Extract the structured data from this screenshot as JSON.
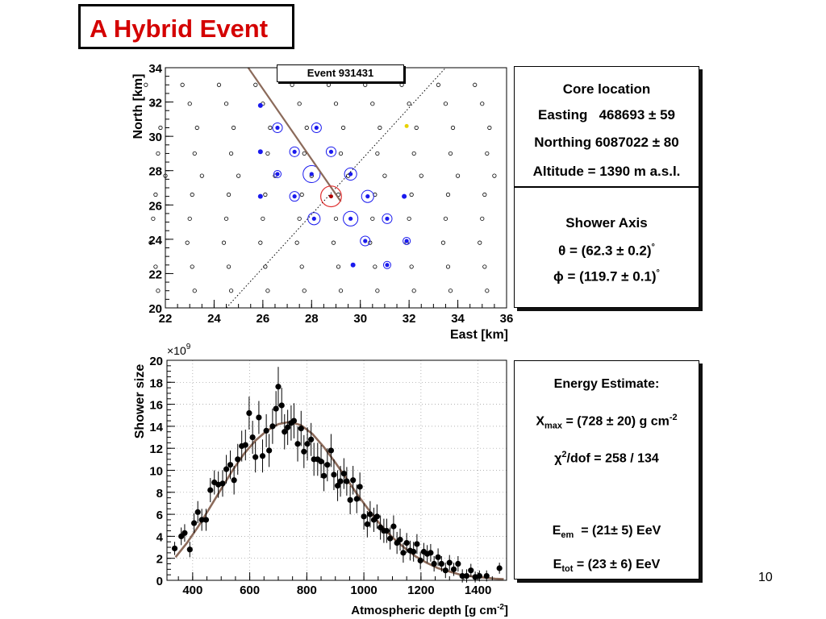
{
  "slide": {
    "title": "A Hybrid Event",
    "page_number": "10"
  },
  "colors": {
    "title": "#d40000",
    "fit_line": "#8b6a5a",
    "station_hit": "#1a1aee",
    "core": "#e03030"
  },
  "footprint": {
    "event_label": "Event 931431",
    "x_label": "East  [km]",
    "y_label": "North  [km]",
    "x_ticks": [
      "22",
      "24",
      "26",
      "28",
      "30",
      "32",
      "34",
      "36"
    ],
    "y_ticks": [
      "20",
      "22",
      "24",
      "26",
      "28",
      "30",
      "32",
      "34"
    ]
  },
  "core_panel": {
    "heading": "Core location",
    "easting_label": "Easting",
    "easting_value": "468693",
    "easting_err": "59",
    "northing_label": "Northing",
    "northing_value": "6087022",
    "northing_err": "80",
    "altitude": "Altitude = 1390 m a.s.l."
  },
  "axis_panel": {
    "heading": "Shower Axis",
    "theta_symbol": "θ",
    "theta_value": "62.3",
    "theta_err": "0.2",
    "phi_symbol": "ϕ",
    "phi_value": "119.7",
    "phi_err": "0.1",
    "degree": "°"
  },
  "energy_panel": {
    "heading": "Energy Estimate:",
    "xmax_x": "X",
    "xmax_sub": "max",
    "xmax_value": "728",
    "xmax_err": "20",
    "xmax_unit": "g cm",
    "xmax_exp": "-2",
    "chi_symbol": "χ",
    "chi_exp": "2",
    "chi_rest": "/dof = 258 / 134",
    "eem_e": "E",
    "eem_sub": "em",
    "eem_value": "21",
    "eem_err": "5",
    "eem_unit": "EeV",
    "etot_e": "E",
    "etot_sub": "tot",
    "etot_value": "23",
    "etot_err": "6",
    "etot_unit": "EeV"
  },
  "chart_data": [
    {
      "type": "scatter",
      "stations": [
        [
          21.2,
          33.0
        ],
        [
          22.7,
          33.0
        ],
        [
          24.2,
          33.0
        ],
        [
          25.7,
          33.0
        ],
        [
          27.2,
          33.0
        ],
        [
          28.7,
          33.0
        ],
        [
          30.2,
          33.0
        ],
        [
          31.7,
          33.0
        ],
        [
          33.2,
          33.0
        ],
        [
          34.7,
          33.0
        ],
        [
          21.5,
          31.9
        ],
        [
          23.0,
          31.9
        ],
        [
          24.5,
          31.9
        ],
        [
          26.0,
          31.9
        ],
        [
          27.5,
          31.9
        ],
        [
          29.0,
          31.9
        ],
        [
          30.5,
          31.9
        ],
        [
          32.0,
          31.9
        ],
        [
          33.5,
          31.9
        ],
        [
          35.0,
          31.9
        ],
        [
          21.8,
          30.5
        ],
        [
          23.3,
          30.5
        ],
        [
          24.8,
          30.5
        ],
        [
          26.3,
          30.5
        ],
        [
          27.8,
          30.5
        ],
        [
          29.3,
          30.5
        ],
        [
          30.8,
          30.5
        ],
        [
          32.3,
          30.5
        ],
        [
          33.8,
          30.5
        ],
        [
          35.3,
          30.5
        ],
        [
          21.7,
          29.0
        ],
        [
          23.2,
          29.0
        ],
        [
          24.7,
          29.0
        ],
        [
          26.2,
          29.0
        ],
        [
          27.7,
          29.0
        ],
        [
          29.2,
          29.0
        ],
        [
          30.7,
          29.0
        ],
        [
          32.2,
          29.0
        ],
        [
          33.7,
          29.0
        ],
        [
          35.2,
          29.0
        ],
        [
          22.0,
          27.7
        ],
        [
          23.5,
          27.7
        ],
        [
          25.0,
          27.7
        ],
        [
          26.5,
          27.7
        ],
        [
          28.0,
          27.7
        ],
        [
          29.5,
          27.7
        ],
        [
          31.0,
          27.7
        ],
        [
          32.5,
          27.7
        ],
        [
          34.0,
          27.7
        ],
        [
          35.5,
          27.7
        ],
        [
          21.6,
          26.6
        ],
        [
          23.1,
          26.6
        ],
        [
          24.6,
          26.6
        ],
        [
          26.1,
          26.6
        ],
        [
          27.6,
          26.6
        ],
        [
          29.1,
          26.6
        ],
        [
          30.6,
          26.6
        ],
        [
          32.1,
          26.6
        ],
        [
          33.6,
          26.6
        ],
        [
          35.1,
          26.6
        ],
        [
          21.5,
          25.2
        ],
        [
          23.0,
          25.2
        ],
        [
          24.5,
          25.2
        ],
        [
          26.0,
          25.2
        ],
        [
          27.5,
          25.2
        ],
        [
          29.0,
          25.2
        ],
        [
          30.5,
          25.2
        ],
        [
          32.0,
          25.2
        ],
        [
          33.5,
          25.2
        ],
        [
          35.0,
          25.2
        ],
        [
          21.4,
          23.8
        ],
        [
          22.9,
          23.8
        ],
        [
          24.4,
          23.8
        ],
        [
          25.9,
          23.8
        ],
        [
          27.4,
          23.8
        ],
        [
          28.9,
          23.8
        ],
        [
          30.4,
          23.8
        ],
        [
          31.9,
          23.8
        ],
        [
          33.4,
          23.8
        ],
        [
          34.9,
          23.8
        ],
        [
          21.6,
          22.4
        ],
        [
          23.1,
          22.4
        ],
        [
          24.6,
          22.4
        ],
        [
          26.1,
          22.4
        ],
        [
          27.6,
          22.4
        ],
        [
          29.1,
          22.4
        ],
        [
          30.6,
          22.4
        ],
        [
          32.1,
          22.4
        ],
        [
          33.6,
          22.4
        ],
        [
          35.1,
          22.4
        ],
        [
          21.7,
          21.0
        ],
        [
          23.2,
          21.0
        ],
        [
          24.7,
          21.0
        ],
        [
          26.2,
          21.0
        ],
        [
          27.7,
          21.0
        ],
        [
          29.2,
          21.0
        ],
        [
          30.7,
          21.0
        ],
        [
          32.2,
          21.0
        ],
        [
          33.7,
          21.0
        ],
        [
          35.2,
          21.0
        ]
      ],
      "hit_stations": [
        [
          26.6,
          30.5,
          0.4
        ],
        [
          28.2,
          30.5,
          0.4
        ],
        [
          27.3,
          29.1,
          0.4
        ],
        [
          28.8,
          29.1,
          0.4
        ],
        [
          26.6,
          27.8,
          0.3
        ],
        [
          28.0,
          27.8,
          0.7
        ],
        [
          29.6,
          27.8,
          0.5
        ],
        [
          27.3,
          26.5,
          0.4
        ],
        [
          30.3,
          26.5,
          0.5
        ],
        [
          28.1,
          25.2,
          0.5
        ],
        [
          29.6,
          25.2,
          0.6
        ],
        [
          31.1,
          25.2,
          0.4
        ],
        [
          30.2,
          23.9,
          0.4
        ],
        [
          31.9,
          23.9,
          0.3
        ],
        [
          31.1,
          22.5,
          0.3
        ]
      ],
      "blue_dots": [
        [
          25.9,
          31.8
        ],
        [
          25.9,
          29.1
        ],
        [
          25.9,
          26.5
        ],
        [
          31.8,
          26.5
        ],
        [
          29.7,
          22.5
        ]
      ],
      "yellow_dot": [
        31.9,
        30.6
      ],
      "core": [
        28.8,
        26.5
      ],
      "core_ring_r": 0.85,
      "shower_axis_line": [
        [
          25.4,
          34.0
        ],
        [
          29.2,
          26.2
        ]
      ],
      "fd_line": [
        [
          24.5,
          20.0
        ],
        [
          33.5,
          34.0
        ]
      ],
      "xlim": [
        22,
        36
      ],
      "ylim": [
        20,
        34
      ],
      "xlabel": "East  [km]",
      "ylabel": "North  [km]"
    },
    {
      "type": "scatter",
      "x_multiplier": "×10",
      "x_multiplier_exp": "9",
      "xlabel_main": "Atmospheric depth [g cm",
      "xlabel_exp": "-2",
      "xlabel_tail": "]",
      "ylabel": "Shower size",
      "xlim": [
        310,
        1500
      ],
      "ylim": [
        0,
        20
      ],
      "x_ticks": [
        400,
        600,
        800,
        1000,
        1200,
        1400
      ],
      "y_ticks": [
        0,
        2,
        4,
        6,
        8,
        10,
        12,
        14,
        16,
        18,
        20
      ],
      "points": [
        [
          337,
          2.9,
          0.6
        ],
        [
          360,
          4.0,
          0.8
        ],
        [
          372,
          4.3,
          0.8
        ],
        [
          390,
          2.8,
          0.7
        ],
        [
          405,
          5.2,
          0.9
        ],
        [
          418,
          6.2,
          1.0
        ],
        [
          432,
          5.5,
          1.0
        ],
        [
          447,
          5.5,
          1.0
        ],
        [
          462,
          8.2,
          1.1
        ],
        [
          476,
          8.9,
          1.1
        ],
        [
          490,
          8.7,
          1.2
        ],
        [
          505,
          8.8,
          1.2
        ],
        [
          518,
          10.1,
          1.3
        ],
        [
          532,
          10.5,
          1.3
        ],
        [
          545,
          9.1,
          1.3
        ],
        [
          558,
          11.0,
          1.4
        ],
        [
          572,
          12.2,
          1.4
        ],
        [
          585,
          12.3,
          1.4
        ],
        [
          598,
          15.2,
          1.5
        ],
        [
          610,
          13.0,
          1.5
        ],
        [
          620,
          11.2,
          1.4
        ],
        [
          632,
          14.8,
          1.5
        ],
        [
          645,
          11.3,
          1.5
        ],
        [
          658,
          13.6,
          1.5
        ],
        [
          668,
          11.8,
          1.5
        ],
        [
          680,
          14.0,
          1.6
        ],
        [
          692,
          15.6,
          1.6
        ],
        [
          700,
          17.6,
          1.8
        ],
        [
          712,
          15.9,
          1.6
        ],
        [
          722,
          13.5,
          1.6
        ],
        [
          733,
          13.9,
          1.6
        ],
        [
          745,
          14.3,
          1.6
        ],
        [
          755,
          14.5,
          1.6
        ],
        [
          768,
          12.4,
          1.6
        ],
        [
          780,
          13.8,
          1.6
        ],
        [
          790,
          11.7,
          1.5
        ],
        [
          802,
          12.4,
          1.5
        ],
        [
          815,
          12.8,
          1.5
        ],
        [
          825,
          11.0,
          1.5
        ],
        [
          838,
          11.0,
          1.5
        ],
        [
          850,
          10.8,
          1.5
        ],
        [
          860,
          9.5,
          1.4
        ],
        [
          872,
          10.5,
          1.5
        ],
        [
          885,
          11.8,
          1.5
        ],
        [
          895,
          9.6,
          1.4
        ],
        [
          908,
          8.6,
          1.4
        ],
        [
          918,
          9.0,
          1.4
        ],
        [
          930,
          9.7,
          1.4
        ],
        [
          940,
          9.0,
          1.3
        ],
        [
          952,
          7.3,
          1.3
        ],
        [
          962,
          9.1,
          1.3
        ],
        [
          975,
          7.4,
          1.3
        ],
        [
          986,
          8.5,
          1.3
        ],
        [
          1000,
          5.8,
          1.2
        ],
        [
          1012,
          5.1,
          1.2
        ],
        [
          1022,
          6.0,
          1.2
        ],
        [
          1035,
          5.5,
          1.1
        ],
        [
          1046,
          5.8,
          1.1
        ],
        [
          1058,
          4.8,
          1.1
        ],
        [
          1070,
          4.5,
          1.1
        ],
        [
          1080,
          4.5,
          1.1
        ],
        [
          1092,
          3.8,
          1.0
        ],
        [
          1104,
          4.9,
          1.0
        ],
        [
          1116,
          3.4,
          1.0
        ],
        [
          1127,
          3.7,
          1.0
        ],
        [
          1138,
          2.5,
          0.9
        ],
        [
          1150,
          3.4,
          0.9
        ],
        [
          1162,
          2.7,
          0.9
        ],
        [
          1174,
          2.6,
          0.9
        ],
        [
          1186,
          3.3,
          0.9
        ],
        [
          1198,
          1.8,
          0.8
        ],
        [
          1210,
          2.6,
          0.8
        ],
        [
          1222,
          2.4,
          0.8
        ],
        [
          1234,
          2.5,
          0.8
        ],
        [
          1246,
          1.5,
          0.7
        ],
        [
          1260,
          2.1,
          0.8
        ],
        [
          1272,
          1.5,
          0.7
        ],
        [
          1286,
          0.9,
          0.7
        ],
        [
          1300,
          1.6,
          0.7
        ],
        [
          1315,
          1.0,
          0.6
        ],
        [
          1330,
          1.5,
          0.7
        ],
        [
          1345,
          0.4,
          0.6
        ],
        [
          1360,
          0.4,
          0.6
        ],
        [
          1375,
          0.9,
          0.6
        ],
        [
          1390,
          0.3,
          0.5
        ],
        [
          1405,
          0.4,
          0.5
        ],
        [
          1430,
          0.4,
          0.5
        ],
        [
          1475,
          1.1,
          0.5
        ]
      ],
      "fit_curve": [
        [
          340,
          2.1
        ],
        [
          380,
          3.4
        ],
        [
          420,
          4.9
        ],
        [
          460,
          6.6
        ],
        [
          500,
          8.3
        ],
        [
          540,
          10.0
        ],
        [
          580,
          11.5
        ],
        [
          620,
          12.7
        ],
        [
          660,
          13.6
        ],
        [
          700,
          14.2
        ],
        [
          740,
          14.4
        ],
        [
          780,
          14.1
        ],
        [
          820,
          13.3
        ],
        [
          860,
          12.1
        ],
        [
          900,
          10.7
        ],
        [
          940,
          9.2
        ],
        [
          980,
          7.7
        ],
        [
          1020,
          6.3
        ],
        [
          1060,
          5.0
        ],
        [
          1100,
          3.9
        ],
        [
          1140,
          3.0
        ],
        [
          1180,
          2.2
        ],
        [
          1220,
          1.6
        ],
        [
          1260,
          1.1
        ],
        [
          1300,
          0.8
        ],
        [
          1340,
          0.5
        ],
        [
          1380,
          0.35
        ],
        [
          1420,
          0.25
        ],
        [
          1460,
          0.15
        ],
        [
          1490,
          0.1
        ]
      ]
    }
  ]
}
